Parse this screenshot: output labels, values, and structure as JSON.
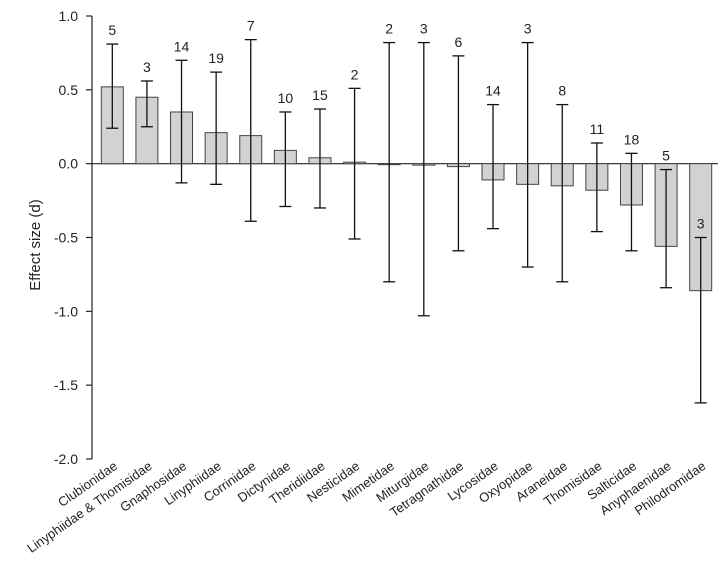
{
  "chart_data": {
    "type": "bar",
    "title": "",
    "xlabel": "",
    "ylabel": "Effect size (d)",
    "ylim": [
      -2.0,
      1.0
    ],
    "yticks": [
      "1.0",
      "0.5",
      "0.0",
      "-0.5",
      "-1.0",
      "-1.5",
      "-2.0"
    ],
    "ytick_values": [
      1.0,
      0.5,
      0.0,
      -0.5,
      -1.0,
      -1.5,
      -2.0
    ],
    "grid": false,
    "bar_color": "#d2d2d2",
    "categories": [
      "Clubionidae",
      "Linyphiidae & Thomisidae",
      "Gnaphosidae",
      "Linyphiidae",
      "Corrinidae",
      "Dictynidae",
      "Theridiidae",
      "Nesticidae",
      "Mimetidae",
      "Miturgidae",
      "Tetragnathidae",
      "Lycosidae",
      "Oxyopidae",
      "Araneidae",
      "Thomisidae",
      "Salticidae",
      "Anyphaenidae",
      "Philodromidae"
    ],
    "values": [
      0.52,
      0.45,
      0.35,
      0.21,
      0.19,
      0.09,
      0.04,
      0.01,
      0.0,
      -0.01,
      -0.02,
      -0.11,
      -0.14,
      -0.15,
      -0.18,
      -0.28,
      -0.56,
      -0.86
    ],
    "error_lower": [
      0.24,
      0.25,
      -0.13,
      -0.14,
      -0.39,
      -0.29,
      -0.3,
      -0.51,
      -0.8,
      -1.03,
      -0.59,
      -0.44,
      -0.7,
      -0.8,
      -0.46,
      -0.59,
      -0.84,
      -1.62
    ],
    "error_upper": [
      0.81,
      0.56,
      0.7,
      0.62,
      0.84,
      0.35,
      0.37,
      0.51,
      0.82,
      0.82,
      0.73,
      0.4,
      0.82,
      0.4,
      0.14,
      0.07,
      -0.04,
      -0.5
    ],
    "n_labels": [
      "5",
      "3",
      "14",
      "19",
      "7",
      "10",
      "15",
      "2",
      "2",
      "3",
      "6",
      "14",
      "3",
      "8",
      "11",
      "18",
      "5",
      "3"
    ]
  }
}
